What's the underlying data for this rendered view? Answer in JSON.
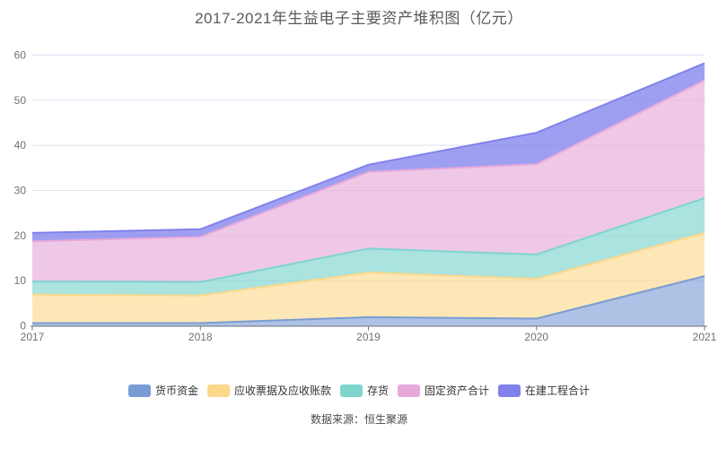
{
  "source": "数据来源：恒生聚源",
  "chart_data": {
    "type": "area",
    "stacked": true,
    "title": "2017-2021年生益电子主要资产堆积图（亿元）",
    "unit": "亿元",
    "categories": [
      "2017",
      "2018",
      "2019",
      "2020",
      "2021"
    ],
    "series": [
      {
        "name": "货币资金",
        "values": [
          0.6,
          0.6,
          1.9,
          1.6,
          11.0
        ],
        "color": "#7B9CD3",
        "fill": "rgba(123,156,211,0.62)"
      },
      {
        "name": "应收票据及应收账款",
        "values": [
          6.3,
          6.1,
          9.9,
          8.8,
          9.6
        ],
        "color": "#FBD88A",
        "fill": "rgba(251,216,138,0.62)"
      },
      {
        "name": "存货",
        "values": [
          2.9,
          3.0,
          5.3,
          5.4,
          7.7
        ],
        "color": "#7FD4CE",
        "fill": "rgba(127,212,206,0.66)"
      },
      {
        "name": "固定资产合计",
        "values": [
          8.9,
          10.0,
          17.0,
          20.0,
          26.1
        ],
        "color": "#E7A9DA",
        "fill": "rgba(231,169,218,0.64)"
      },
      {
        "name": "在建工程合计",
        "values": [
          1.9,
          1.7,
          1.6,
          7.0,
          3.8
        ],
        "color": "#8181EC",
        "fill": "rgba(129,129,236,0.76)"
      }
    ],
    "yticks": [
      0,
      10,
      20,
      30,
      40,
      50,
      60
    ],
    "ylim": [
      0,
      60
    ],
    "grid": true,
    "legend_position": "bottom",
    "axis_color": "#6E7079",
    "grid_color": "#DDE2F1",
    "label_color": "#6E7079"
  }
}
